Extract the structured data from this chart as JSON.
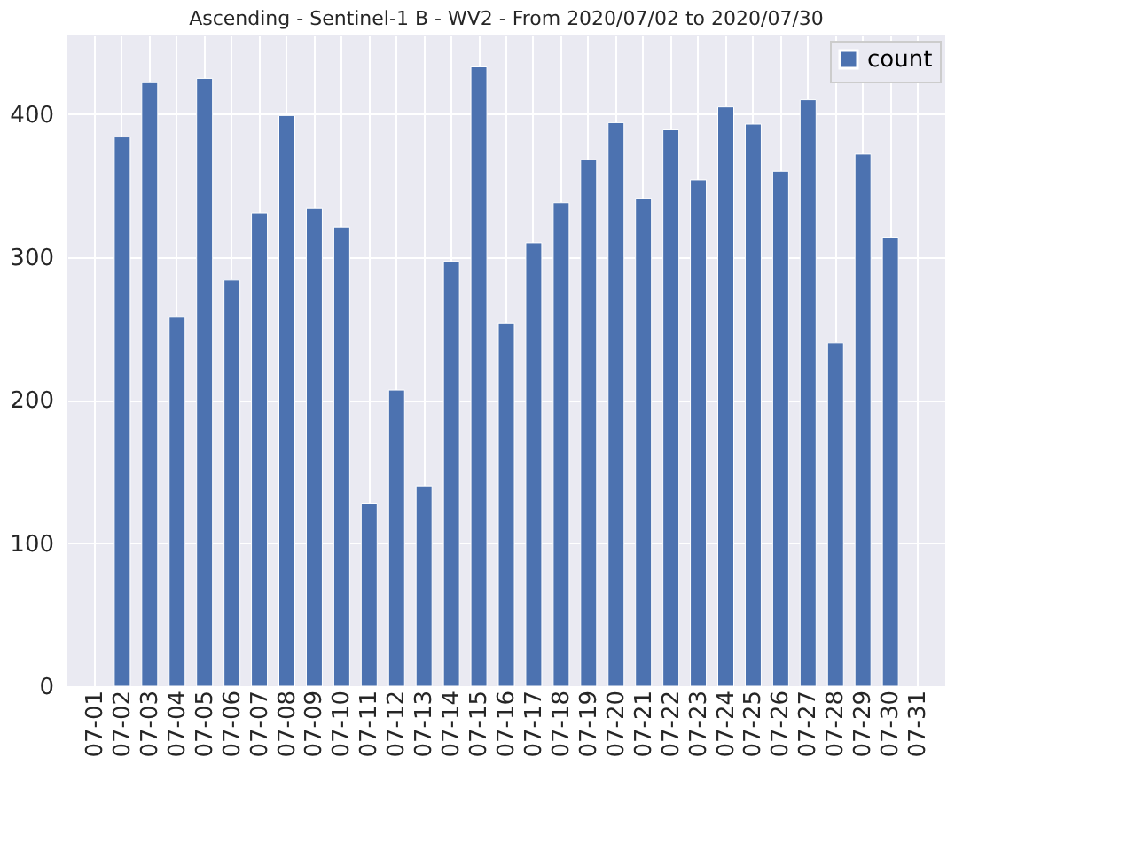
{
  "chart_data": {
    "type": "bar",
    "title": "Ascending - Sentinel-1 B - WV2 - From 2020/07/02 to 2020/07/30",
    "categories": [
      "07-01",
      "07-02",
      "07-03",
      "07-04",
      "07-05",
      "07-06",
      "07-07",
      "07-08",
      "07-09",
      "07-10",
      "07-11",
      "07-12",
      "07-13",
      "07-14",
      "07-15",
      "07-16",
      "07-17",
      "07-18",
      "07-19",
      "07-20",
      "07-21",
      "07-22",
      "07-23",
      "07-24",
      "07-25",
      "07-26",
      "07-27",
      "07-28",
      "07-29",
      "07-30",
      "07-31"
    ],
    "series": [
      {
        "name": "count",
        "color": "#4c72b0",
        "values": [
          null,
          384,
          422,
          258,
          425,
          284,
          331,
          399,
          334,
          321,
          128,
          207,
          140,
          297,
          433,
          254,
          310,
          338,
          368,
          394,
          341,
          389,
          354,
          405,
          393,
          360,
          410,
          240,
          372,
          314,
          null
        ]
      }
    ],
    "ylim": [
      0,
      455
    ],
    "yticks": [
      0,
      100,
      200,
      300,
      400
    ],
    "grid": true,
    "legend": "top right"
  }
}
